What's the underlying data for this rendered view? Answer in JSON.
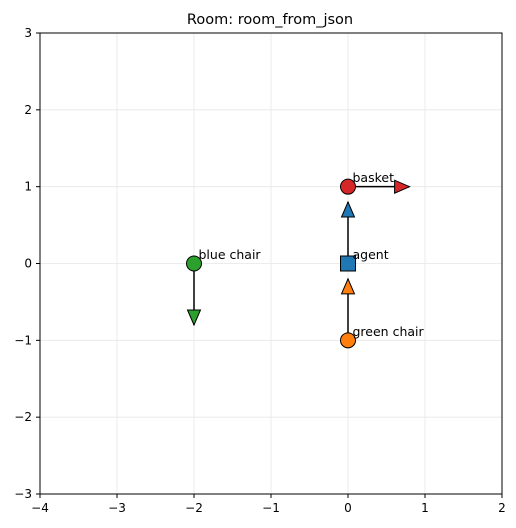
{
  "chart_data": {
    "type": "scatter",
    "title": "Room: room_from_json",
    "xlabel": "",
    "ylabel": "",
    "xlim": [
      -4,
      2
    ],
    "ylim": [
      -3,
      3
    ],
    "xticks": [
      -4,
      -3,
      -2,
      -1,
      0,
      1,
      2
    ],
    "yticks": [
      -3,
      -2,
      -1,
      0,
      1,
      2,
      3
    ],
    "xtick_labels": [
      "−4",
      "−3",
      "−2",
      "−1",
      "0",
      "1",
      "2"
    ],
    "ytick_labels": [
      "−3",
      "−2",
      "−1",
      "0",
      "1",
      "2",
      "3"
    ],
    "grid": true,
    "aspect": "equal",
    "objects": [
      {
        "label": "agent",
        "marker": "square",
        "x": 0,
        "y": 0,
        "color": "#1f77b4",
        "heading": [
          0,
          0.8
        ]
      },
      {
        "label": "green chair",
        "marker": "circle",
        "x": 0,
        "y": -1,
        "color": "#ff7f0e",
        "heading": [
          0,
          0.8
        ]
      },
      {
        "label": "blue chair",
        "marker": "circle",
        "x": -2,
        "y": 0,
        "color": "#2ca02c",
        "heading": [
          0,
          -0.8
        ]
      },
      {
        "label": "basket",
        "marker": "circle",
        "x": 0,
        "y": 1,
        "color": "#d62728",
        "heading": [
          0.8,
          0
        ]
      }
    ]
  }
}
